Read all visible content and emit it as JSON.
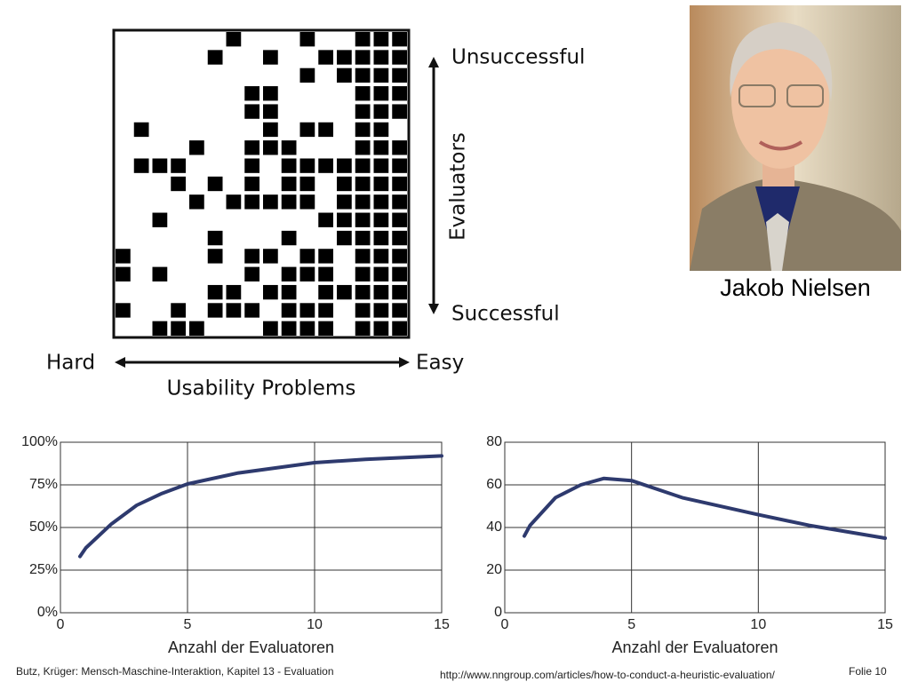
{
  "figure": {
    "top_label": "Unsuccessful",
    "bottom_label": "Successful",
    "vertical_label": "Evaluators",
    "left_label": "Hard",
    "right_label": "Easy",
    "horizontal_label": "Usability Problems"
  },
  "photo": {
    "caption": "Jakob Nielsen"
  },
  "chart_data": [
    {
      "type": "line",
      "xlabel": "Anzahl der Evaluatoren",
      "color": "#2e3a6e",
      "grid": true,
      "x": [
        0.77,
        1,
        2,
        3,
        4,
        5,
        7,
        10,
        12,
        15
      ],
      "values": [
        33,
        38,
        52,
        63,
        70,
        75.5,
        82,
        88,
        90,
        92
      ],
      "xlim": [
        0,
        15
      ],
      "xticks": [
        0,
        5,
        10,
        15
      ],
      "ylim": [
        0,
        100
      ],
      "yticks": [
        {
          "value": 0,
          "label": "0%"
        },
        {
          "value": 25,
          "label": "25%"
        },
        {
          "value": 50,
          "label": "50%"
        },
        {
          "value": 75,
          "label": "75%"
        },
        {
          "value": 100,
          "label": "100%"
        }
      ]
    },
    {
      "type": "line",
      "xlabel": "Anzahl der Evaluatoren",
      "color": "#2e3a6e",
      "grid": true,
      "x": [
        0.77,
        1,
        2,
        3,
        3.9,
        5,
        7,
        10,
        12,
        15
      ],
      "values": [
        36,
        41,
        54,
        60,
        63,
        62,
        54,
        46,
        41,
        35
      ],
      "xlim": [
        0,
        15
      ],
      "xticks": [
        0,
        5,
        10,
        15
      ],
      "ylim": [
        0,
        80
      ],
      "yticks": [
        0,
        20,
        40,
        60,
        80
      ]
    }
  ],
  "footer": {
    "left": "Butz, Krüger: Mensch-Maschine-Interaktion, Kapitel 13 - Evaluation",
    "url": "http://www.nngroup.com/articles/how-to-conduct-a-heuristic-evaluation/",
    "slide": "Folie  10"
  }
}
